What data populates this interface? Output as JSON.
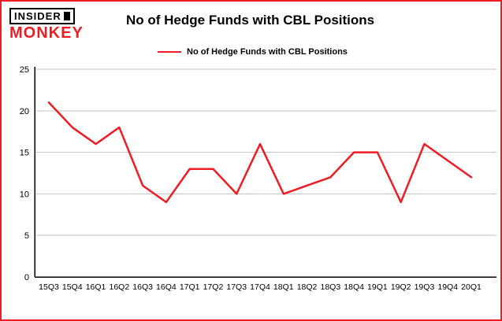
{
  "logo": {
    "line1": "INSIDER",
    "line2": "MONKEY"
  },
  "title": "No of Hedge Funds with CBL Positions",
  "legend": {
    "label": "No of Hedge Funds with CBL Positions"
  },
  "colors": {
    "accent_red": "#ee1c25",
    "axis": "#000000",
    "grid": "#c6c6c6",
    "background": "#ffffff"
  },
  "chart_data": {
    "type": "line",
    "title": "No of Hedge Funds with CBL Positions",
    "categories": [
      "15Q3",
      "15Q4",
      "16Q1",
      "16Q2",
      "16Q3",
      "16Q4",
      "17Q1",
      "17Q2",
      "17Q3",
      "17Q4",
      "18Q1",
      "18Q2",
      "18Q3",
      "18Q4",
      "19Q1",
      "19Q2",
      "19Q3",
      "19Q4",
      "20Q1"
    ],
    "series": [
      {
        "name": "No of Hedge Funds with CBL Positions",
        "color": "#ee1c25",
        "values": [
          21,
          18,
          16,
          18,
          11,
          9,
          13,
          13,
          10,
          16,
          10,
          11,
          12,
          15,
          15,
          9,
          16,
          14,
          12
        ]
      }
    ],
    "xlabel": "",
    "ylabel": "",
    "ylim": [
      0,
      25
    ],
    "yticks": [
      0,
      5,
      10,
      15,
      20,
      25
    ],
    "grid": true,
    "legend_position": "top"
  }
}
